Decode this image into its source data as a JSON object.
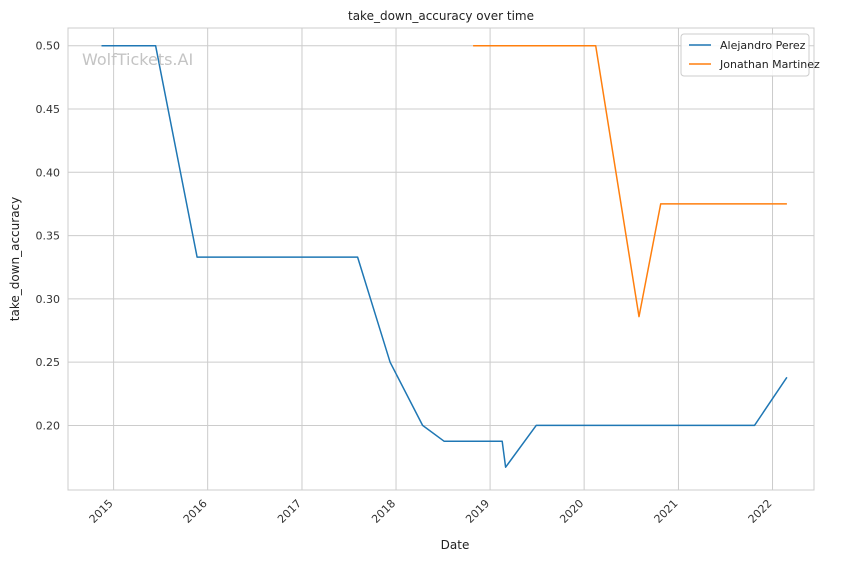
{
  "watermark": "WolfTickets.AI",
  "chart_data": {
    "type": "line",
    "title": "take_down_accuracy over time",
    "xlabel": "Date",
    "ylabel": "take_down_accuracy",
    "x_ticks": [
      "2015",
      "2016",
      "2017",
      "2018",
      "2019",
      "2020",
      "2021",
      "2022"
    ],
    "y_ticks": [
      "0.20",
      "0.25",
      "0.30",
      "0.35",
      "0.40",
      "0.45",
      "0.50"
    ],
    "xlim": [
      "2014-07-08",
      "2022-06-11"
    ],
    "ylim": [
      0.149,
      0.514
    ],
    "grid": true,
    "legend_position": "top-right",
    "series": [
      {
        "name": "Alejandro Perez",
        "color": "#1f77b4",
        "points": [
          [
            "2014-11-15",
            0.5
          ],
          [
            "2015-06-13",
            0.5
          ],
          [
            "2015-11-21",
            0.333
          ],
          [
            "2017-08-05",
            0.333
          ],
          [
            "2017-12-09",
            0.25
          ],
          [
            "2018-04-14",
            0.2
          ],
          [
            "2018-07-07",
            0.1875
          ],
          [
            "2019-02-17",
            0.1875
          ],
          [
            "2019-03-02",
            0.167
          ],
          [
            "2019-06-29",
            0.2
          ],
          [
            "2021-10-23",
            0.2
          ],
          [
            "2022-02-26",
            0.238
          ]
        ]
      },
      {
        "name": "Jonathan Martinez",
        "color": "#ff7f0e",
        "points": [
          [
            "2018-10-27",
            0.5
          ],
          [
            "2020-02-15",
            0.5
          ],
          [
            "2020-08-01",
            0.286
          ],
          [
            "2020-10-24",
            0.375
          ],
          [
            "2022-02-26",
            0.375
          ]
        ]
      }
    ]
  }
}
